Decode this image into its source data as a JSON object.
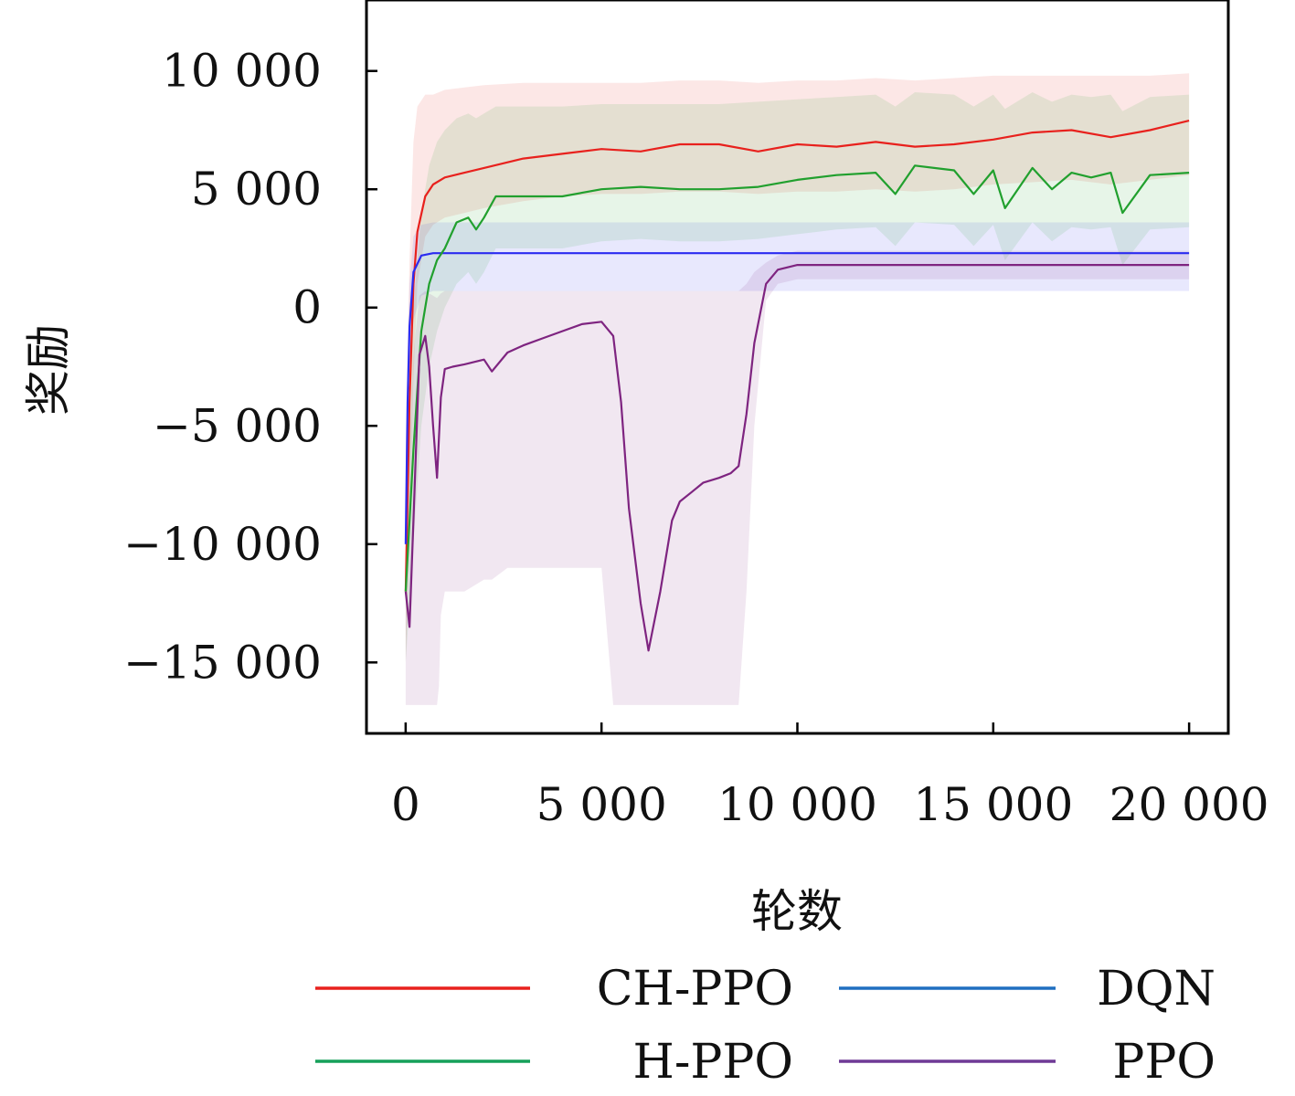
{
  "chart_data": {
    "type": "line",
    "xlabel": "轮数",
    "ylabel": "奖励",
    "xlim": [
      -1000,
      21000
    ],
    "ylim": [
      -18000,
      13000
    ],
    "xticks": [
      0,
      5000,
      10000,
      15000,
      20000
    ],
    "xtick_labels": [
      "0",
      "5 000",
      "10 000",
      "15 000",
      "20 000"
    ],
    "yticks": [
      10000,
      5000,
      0,
      -5000,
      -10000,
      -15000
    ],
    "ytick_labels": [
      "10 000",
      "5 000",
      "0",
      "−5 000",
      "−10 000",
      "−15 000"
    ],
    "grid": false,
    "legend_position": "bottom",
    "series": [
      {
        "name": "CH-PPO",
        "color": "#e8211d",
        "x": [
          0,
          100,
          200,
          300,
          500,
          700,
          1000,
          1500,
          2000,
          3000,
          4000,
          5000,
          6000,
          7000,
          8000,
          9000,
          10000,
          11000,
          12000,
          13000,
          14000,
          15000,
          16000,
          17000,
          18000,
          19000,
          20000
        ],
        "values": [
          -12000,
          -4000,
          1000,
          3200,
          4700,
          5200,
          5500,
          5700,
          5900,
          6300,
          6500,
          6700,
          6600,
          6900,
          6900,
          6600,
          6900,
          6800,
          7000,
          6800,
          6900,
          7100,
          7400,
          7500,
          7200,
          7500,
          7900
        ],
        "band_upper": [
          -6000,
          2000,
          7000,
          8500,
          9000,
          9000,
          9200,
          9300,
          9400,
          9500,
          9500,
          9500,
          9500,
          9600,
          9600,
          9500,
          9600,
          9600,
          9700,
          9600,
          9700,
          9800,
          9800,
          9800,
          9800,
          9800,
          9900
        ],
        "band_lower": [
          -15000,
          -9000,
          -3000,
          1000,
          3000,
          3500,
          3800,
          4000,
          4200,
          4500,
          4700,
          4800,
          4800,
          4900,
          4900,
          4800,
          4900,
          4900,
          5000,
          4900,
          5000,
          5200,
          5300,
          5400,
          5200,
          5400,
          5600
        ]
      },
      {
        "name": "DQN",
        "color": "#2b2bf0",
        "x": [
          0,
          50,
          100,
          200,
          400,
          700,
          1000,
          2000,
          5000,
          8000,
          10000,
          15000,
          20000
        ],
        "values": [
          -10000,
          -4000,
          -800,
          1500,
          2200,
          2300,
          2300,
          2300,
          2300,
          2300,
          2300,
          2300,
          2300
        ],
        "band_upper": [
          -8000,
          -2000,
          1000,
          3000,
          3500,
          3600,
          3600,
          3600,
          3600,
          3600,
          3600,
          3600,
          3600
        ],
        "band_lower": [
          -12000,
          -6000,
          -2500,
          -500,
          500,
          700,
          700,
          700,
          700,
          700,
          700,
          700,
          700
        ]
      },
      {
        "name": "H-PPO",
        "color": "#21a02e",
        "x": [
          0,
          200,
          400,
          600,
          800,
          1000,
          1300,
          1600,
          1800,
          2000,
          2300,
          3000,
          4000,
          5000,
          6000,
          7000,
          8000,
          9000,
          10000,
          11000,
          12000,
          12500,
          13000,
          14000,
          14500,
          15000,
          15300,
          16000,
          16500,
          17000,
          17500,
          18000,
          18300,
          19000,
          20000
        ],
        "values": [
          -12000,
          -6000,
          -1000,
          1000,
          2000,
          2500,
          3600,
          3800,
          3300,
          3800,
          4700,
          4700,
          4700,
          5000,
          5100,
          5000,
          5000,
          5100,
          5400,
          5600,
          5700,
          4800,
          6000,
          5800,
          4800,
          5800,
          4200,
          5900,
          5000,
          5700,
          5500,
          5700,
          4000,
          5600,
          5700
        ],
        "band_upper": [
          -8000,
          0,
          4000,
          6000,
          7000,
          7500,
          8000,
          8200,
          8000,
          8200,
          8500,
          8500,
          8500,
          8600,
          8600,
          8600,
          8600,
          8700,
          8800,
          8900,
          9000,
          8500,
          9100,
          9000,
          8500,
          9000,
          8400,
          9100,
          8700,
          9000,
          8900,
          9000,
          8300,
          8900,
          9000
        ],
        "band_lower": [
          -15000,
          -10000,
          -5000,
          -2500,
          -1000,
          0,
          1000,
          1500,
          1000,
          1500,
          2500,
          2500,
          2500,
          2800,
          2900,
          2800,
          2800,
          2900,
          3100,
          3300,
          3400,
          2600,
          3600,
          3500,
          2600,
          3500,
          2000,
          3600,
          2800,
          3400,
          3300,
          3400,
          1800,
          3300,
          3400
        ]
      },
      {
        "name": "PPO",
        "color": "#7e2480",
        "x": [
          0,
          100,
          200,
          350,
          500,
          600,
          700,
          800,
          850,
          900,
          1000,
          1200,
          1500,
          2000,
          2200,
          2600,
          3000,
          3500,
          4000,
          4500,
          5000,
          5300,
          5500,
          5700,
          6000,
          6200,
          6500,
          6800,
          7000,
          7300,
          7600,
          8000,
          8300,
          8500,
          8700,
          8900,
          9200,
          9500,
          10000,
          12000,
          15000,
          20000
        ],
        "values": [
          -12000,
          -13500,
          -9000,
          -2000,
          -1200,
          -2500,
          -5000,
          -7200,
          -5500,
          -3800,
          -2600,
          -2500,
          -2400,
          -2200,
          -2700,
          -1900,
          -1600,
          -1300,
          -1000,
          -700,
          -600,
          -1200,
          -4000,
          -8500,
          -12500,
          -14500,
          -12000,
          -9000,
          -8200,
          -7800,
          -7400,
          -7200,
          -7000,
          -6700,
          -4500,
          -1500,
          1000,
          1600,
          1800,
          1800,
          1800,
          1800
        ],
        "band_upper": [
          -8000,
          -6000,
          -2000,
          500,
          700,
          600,
          500,
          400,
          500,
          600,
          700,
          700,
          700,
          700,
          700,
          700,
          700,
          700,
          700,
          700,
          700,
          700,
          700,
          700,
          700,
          700,
          700,
          700,
          700,
          700,
          700,
          700,
          700,
          700,
          1000,
          1500,
          1900,
          2200,
          2400,
          2400,
          2400,
          2400
        ],
        "band_lower": [
          -16800,
          -16800,
          -16800,
          -16800,
          -16800,
          -16800,
          -16800,
          -16800,
          -16000,
          -13000,
          -12000,
          -12000,
          -12000,
          -11500,
          -11500,
          -11000,
          -11000,
          -11000,
          -11000,
          -11000,
          -11000,
          -16800,
          -16800,
          -16800,
          -16800,
          -16800,
          -16800,
          -16800,
          -16800,
          -16800,
          -16800,
          -16800,
          -16800,
          -16800,
          -12000,
          -5000,
          300,
          1000,
          1200,
          1200,
          1200,
          1200
        ]
      }
    ],
    "legend": {
      "columns": 2,
      "entries": [
        {
          "label": "CH-PPO",
          "color": "#e8211d"
        },
        {
          "label": "DQN",
          "color": "#1f6fc0"
        },
        {
          "label": "H-PPO",
          "color": "#16a05a"
        },
        {
          "label": "PPO",
          "color": "#6f3a96"
        }
      ]
    }
  }
}
